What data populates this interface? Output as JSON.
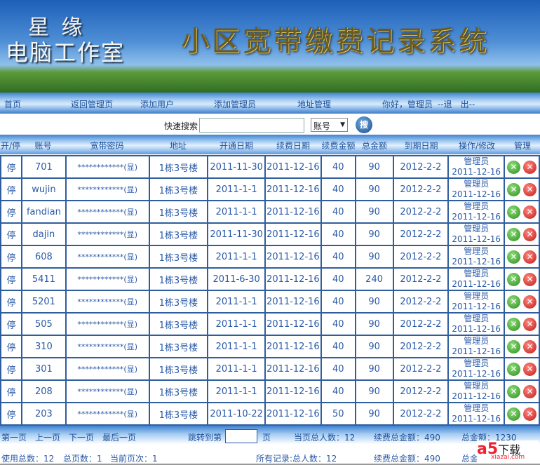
{
  "banner": {
    "logo_line1": "星 缘",
    "logo_line2": "电脑工作室",
    "title": "小区宽带缴费记录系统"
  },
  "nav": {
    "items": [
      "首页",
      "返回管理页",
      "添加用户",
      "添加管理员",
      "地址管理"
    ],
    "greeting": "你好，管理员",
    "logout": "--退　出--"
  },
  "search": {
    "label": "快速搜索",
    "value": "",
    "field": "账号",
    "button": "搜"
  },
  "table": {
    "headers": [
      "开/停",
      "账号",
      "宽带密码",
      "地址",
      "开通日期",
      "续费日期",
      "续费金额",
      "总金额",
      "到期日期",
      "操作/修改",
      "管理"
    ],
    "rows": [
      [
        "停",
        "701",
        "************(显)",
        "1栋3号楼",
        "2011-11-30",
        "2011-12-16",
        "40",
        "90",
        "2012-2-2",
        "管理员",
        "2011-12-16"
      ],
      [
        "停",
        "wujin",
        "************(显)",
        "1栋3号楼",
        "2011-1-1",
        "2011-12-16",
        "40",
        "90",
        "2012-2-2",
        "管理员",
        "2011-12-16"
      ],
      [
        "停",
        "fandian",
        "************(显)",
        "1栋3号楼",
        "2011-1-1",
        "2011-12-16",
        "40",
        "90",
        "2012-2-2",
        "管理员",
        "2011-12-16"
      ],
      [
        "停",
        "dajin",
        "************(显)",
        "1栋3号楼",
        "2011-11-30",
        "2011-12-16",
        "40",
        "90",
        "2012-2-2",
        "管理员",
        "2011-12-16"
      ],
      [
        "停",
        "608",
        "************(显)",
        "1栋3号楼",
        "2011-1-1",
        "2011-12-16",
        "40",
        "90",
        "2012-2-2",
        "管理员",
        "2011-12-16"
      ],
      [
        "停",
        "5411",
        "************(显)",
        "1栋3号楼",
        "2011-6-30",
        "2011-12-16",
        "40",
        "240",
        "2012-2-2",
        "管理员",
        "2011-12-16"
      ],
      [
        "停",
        "5201",
        "************(显)",
        "1栋3号楼",
        "2011-1-1",
        "2011-12-16",
        "40",
        "90",
        "2012-2-2",
        "管理员",
        "2011-12-16"
      ],
      [
        "停",
        "505",
        "************(显)",
        "1栋3号楼",
        "2011-1-1",
        "2011-12-16",
        "40",
        "90",
        "2012-2-2",
        "管理员",
        "2011-12-16"
      ],
      [
        "停",
        "310",
        "************(显)",
        "1栋3号楼",
        "2011-1-1",
        "2011-12-16",
        "40",
        "90",
        "2012-2-2",
        "管理员",
        "2011-12-16"
      ],
      [
        "停",
        "301",
        "************(显)",
        "1栋3号楼",
        "2011-1-1",
        "2011-12-16",
        "40",
        "90",
        "2012-2-2",
        "管理员",
        "2011-12-16"
      ],
      [
        "停",
        "208",
        "************(显)",
        "1栋3号楼",
        "2011-1-1",
        "2011-12-16",
        "40",
        "90",
        "2012-2-2",
        "管理员",
        "2011-12-16"
      ],
      [
        "停",
        "203",
        "************(显)",
        "1栋3号楼",
        "2011-10-22",
        "2011-12-16",
        "50",
        "90",
        "2012-2-2",
        "管理员",
        "2011-12-16"
      ]
    ]
  },
  "pager": {
    "first": "第一页",
    "prev": "上一页",
    "next": "下一页",
    "last": "最后一页",
    "jump_label": "跳转到第",
    "jump_value": "",
    "jump_suffix": "页",
    "page_people": "当页总人数：12",
    "page_renew": "续费总金额：490",
    "page_total": "总金额：1230"
  },
  "summary": {
    "used": "使用总数：12",
    "pages": "总页数：1",
    "current": "当前页次：1",
    "all_people": "所有记录:总人数：12",
    "all_renew": "续费总金额：490",
    "all_total": "总金"
  },
  "watermark": {
    "text": "a5下载",
    "sub": "xiazai.com"
  }
}
